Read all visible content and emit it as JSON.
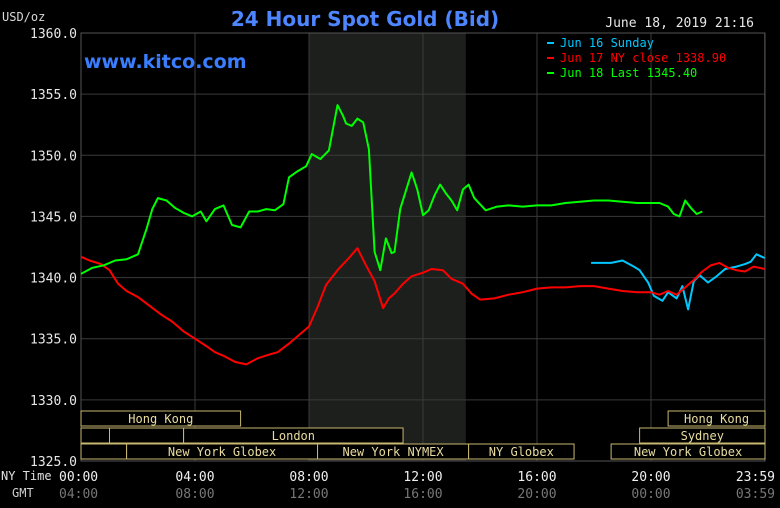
{
  "chart_data": {
    "type": "line",
    "title": "24 Hour Spot Gold (Bid)",
    "ylabel": "USD/oz",
    "timestamp": "June 18, 2019 21:16",
    "brand": "www.kitco.com",
    "ylim": [
      1325.0,
      1360.0
    ],
    "y_ticks": [
      "1360.0",
      "1355.0",
      "1350.0",
      "1345.0",
      "1340.0",
      "1335.0",
      "1330.0",
      "1325.0"
    ],
    "x_row_label": "NY Time",
    "x_ticks": [
      "00:00",
      "04:00",
      "08:00",
      "12:00",
      "16:00",
      "20:00",
      "23:59"
    ],
    "gmt_row_label": "GMT",
    "gmt_ticks": [
      "04:00",
      "08:00",
      "12:00",
      "16:00",
      "20:00",
      "00:00",
      "03:59"
    ],
    "shaded_region_hours": [
      8.0,
      13.5
    ],
    "legend": [
      {
        "text": "Jun 16 Sunday",
        "color": "#00c8ff"
      },
      {
        "text": "Jun 17 NY close 1338.90",
        "color": "#ff0000"
      },
      {
        "text": "Jun 18 Last 1345.40",
        "color": "#00ff00"
      }
    ],
    "sessions": [
      {
        "label": "Hong Kong",
        "start": 0,
        "end": 5.6,
        "row": 0
      },
      {
        "label": "Hong Kong",
        "start": 20.6,
        "end": 24,
        "row": 0
      },
      {
        "label": "",
        "start": 0,
        "end": 1.0,
        "row": 1
      },
      {
        "label": "",
        "start": 1.0,
        "end": 3.6,
        "row": 1
      },
      {
        "label": "London",
        "start": 3.6,
        "end": 11.3,
        "row": 1
      },
      {
        "label": "Sydney",
        "start": 19.6,
        "end": 24,
        "row": 1
      },
      {
        "label": "",
        "start": 0,
        "end": 1.6,
        "row": 2
      },
      {
        "label": "New York Globex",
        "start": 1.6,
        "end": 8.3,
        "row": 2
      },
      {
        "label": "New York NYMEX",
        "start": 8.3,
        "end": 13.6,
        "row": 2
      },
      {
        "label": "NY Globex",
        "start": 13.6,
        "end": 17.3,
        "row": 2
      },
      {
        "label": "New York Globex",
        "start": 18.6,
        "end": 24,
        "row": 2
      }
    ],
    "series": [
      {
        "name": "Jun 16 Sunday",
        "color": "#00c8ff",
        "x": [
          17.9,
          18.6,
          19.0,
          19.4,
          19.6,
          19.9,
          20.1,
          20.4,
          20.6,
          20.9,
          21.1,
          21.3,
          21.5,
          21.7,
          22.0,
          22.3,
          22.6,
          23.0,
          23.3,
          23.5,
          23.7,
          23.99
        ],
        "y": [
          1341.2,
          1341.2,
          1341.4,
          1340.9,
          1340.6,
          1339.6,
          1338.5,
          1338.1,
          1338.8,
          1338.3,
          1339.3,
          1337.4,
          1339.7,
          1340.2,
          1339.6,
          1340.1,
          1340.7,
          1340.9,
          1341.1,
          1341.3,
          1341.9,
          1341.6
        ]
      },
      {
        "name": "Jun 17 NY close 1338.90",
        "color": "#ff0000",
        "x": [
          0.0,
          0.3,
          0.7,
          1.0,
          1.3,
          1.6,
          2.0,
          2.4,
          2.8,
          3.2,
          3.6,
          4.0,
          4.4,
          4.7,
          5.0,
          5.4,
          5.8,
          6.2,
          6.6,
          6.9,
          7.3,
          7.6,
          8.0,
          8.3,
          8.6,
          9.0,
          9.4,
          9.7,
          10.0,
          10.3,
          10.6,
          10.8,
          11.0,
          11.3,
          11.6,
          12.0,
          12.3,
          12.7,
          13.0,
          13.4,
          13.7,
          14.0,
          14.5,
          15.0,
          15.5,
          16.0,
          16.5,
          17.0,
          17.5,
          18.0,
          18.5,
          19.0,
          19.5,
          20.0,
          20.3,
          20.6,
          20.9,
          21.2,
          21.5,
          21.8,
          22.1,
          22.4,
          22.7,
          23.0,
          23.3,
          23.6,
          23.99
        ],
        "y": [
          1341.7,
          1341.4,
          1341.1,
          1340.6,
          1339.5,
          1338.9,
          1338.4,
          1337.7,
          1337.0,
          1336.4,
          1335.6,
          1335.0,
          1334.4,
          1333.9,
          1333.6,
          1333.1,
          1332.9,
          1333.4,
          1333.7,
          1333.9,
          1334.6,
          1335.2,
          1336.0,
          1337.6,
          1339.4,
          1340.6,
          1341.6,
          1342.4,
          1341.0,
          1339.7,
          1337.5,
          1338.3,
          1338.7,
          1339.5,
          1340.1,
          1340.4,
          1340.7,
          1340.6,
          1339.9,
          1339.5,
          1338.7,
          1338.2,
          1338.3,
          1338.6,
          1338.8,
          1339.1,
          1339.2,
          1339.2,
          1339.3,
          1339.3,
          1339.1,
          1338.9,
          1338.8,
          1338.8,
          1338.6,
          1338.9,
          1338.6,
          1339.2,
          1339.8,
          1340.5,
          1341.0,
          1341.2,
          1340.8,
          1340.6,
          1340.5,
          1340.9,
          1340.7
        ]
      },
      {
        "name": "Jun 18 Last 1345.40",
        "color": "#00ff00",
        "x": [
          0.0,
          0.4,
          0.8,
          1.2,
          1.6,
          2.0,
          2.3,
          2.5,
          2.7,
          3.0,
          3.3,
          3.6,
          3.9,
          4.2,
          4.4,
          4.7,
          5.0,
          5.3,
          5.6,
          5.9,
          6.2,
          6.5,
          6.8,
          7.1,
          7.3,
          7.6,
          7.9,
          8.1,
          8.4,
          8.7,
          9.0,
          9.2,
          9.3,
          9.5,
          9.7,
          9.9,
          10.1,
          10.3,
          10.5,
          10.7,
          10.9,
          11.0,
          11.2,
          11.4,
          11.6,
          11.8,
          12.0,
          12.2,
          12.4,
          12.6,
          12.8,
          13.0,
          13.2,
          13.4,
          13.6,
          13.8,
          14.2,
          14.6,
          15.0,
          15.5,
          16.0,
          16.5,
          17.0,
          17.5,
          18.0,
          18.5,
          19.0,
          19.5,
          20.0,
          20.3,
          20.6,
          20.8,
          21.0,
          21.2,
          21.4,
          21.6,
          21.8
        ],
        "y": [
          1340.3,
          1340.8,
          1341.0,
          1341.4,
          1341.5,
          1341.9,
          1344.0,
          1345.6,
          1346.5,
          1346.3,
          1345.7,
          1345.3,
          1345.0,
          1345.4,
          1344.6,
          1345.6,
          1345.9,
          1344.3,
          1344.1,
          1345.4,
          1345.4,
          1345.6,
          1345.5,
          1346.0,
          1348.2,
          1348.7,
          1349.1,
          1350.1,
          1349.7,
          1350.4,
          1354.1,
          1353.2,
          1352.6,
          1352.4,
          1353.0,
          1352.7,
          1350.5,
          1342.1,
          1340.6,
          1343.2,
          1342.0,
          1342.1,
          1345.6,
          1347.1,
          1348.6,
          1347.2,
          1345.1,
          1345.5,
          1346.7,
          1347.6,
          1346.9,
          1346.3,
          1345.5,
          1347.2,
          1347.6,
          1346.5,
          1345.5,
          1345.8,
          1345.9,
          1345.8,
          1345.9,
          1345.9,
          1346.1,
          1346.2,
          1346.3,
          1346.3,
          1346.2,
          1346.1,
          1346.1,
          1346.1,
          1345.8,
          1345.2,
          1345.0,
          1346.3,
          1345.7,
          1345.2,
          1345.4
        ]
      }
    ]
  }
}
